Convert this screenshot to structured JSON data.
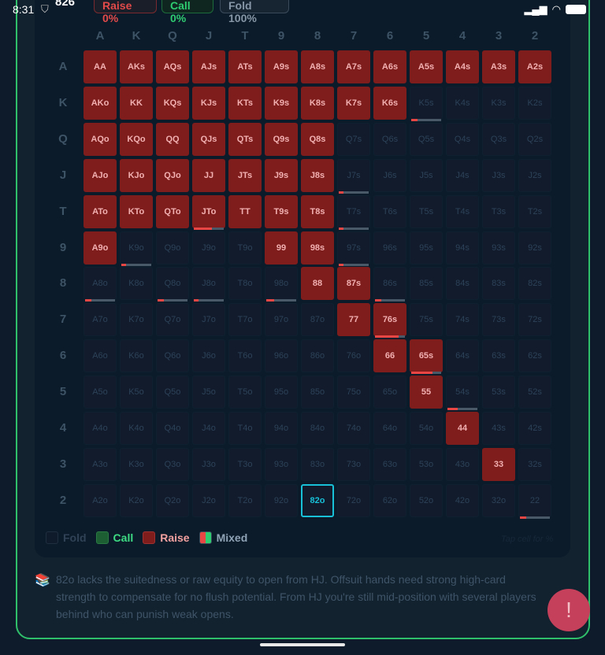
{
  "status_bar": {
    "time": "8:31"
  },
  "header": {
    "score": "826",
    "raise_pill": "Raise 0%",
    "call_pill": "Call 0%",
    "fold_pill": "Fold 100%"
  },
  "grid": {
    "columns": [
      "A",
      "K",
      "Q",
      "J",
      "T",
      "9",
      "8",
      "7",
      "6",
      "5",
      "4",
      "3",
      "2"
    ],
    "hands": [
      [
        "AA",
        "AKs",
        "AQs",
        "AJs",
        "ATs",
        "A9s",
        "A8s",
        "A7s",
        "A6s",
        "A5s",
        "A4s",
        "A3s",
        "A2s"
      ],
      [
        "AKo",
        "KK",
        "KQs",
        "KJs",
        "KTs",
        "K9s",
        "K8s",
        "K7s",
        "K6s",
        "K5s",
        "K4s",
        "K3s",
        "K2s"
      ],
      [
        "AQo",
        "KQo",
        "QQ",
        "QJs",
        "QTs",
        "Q9s",
        "Q8s",
        "Q7s",
        "Q6s",
        "Q5s",
        "Q4s",
        "Q3s",
        "Q2s"
      ],
      [
        "AJo",
        "KJo",
        "QJo",
        "JJ",
        "JTs",
        "J9s",
        "J8s",
        "J7s",
        "J6s",
        "J5s",
        "J4s",
        "J3s",
        "J2s"
      ],
      [
        "ATo",
        "KTo",
        "QTo",
        "JTo",
        "TT",
        "T9s",
        "T8s",
        "T7s",
        "T6s",
        "T5s",
        "T4s",
        "T3s",
        "T2s"
      ],
      [
        "A9o",
        "K9o",
        "Q9o",
        "J9o",
        "T9o",
        "99",
        "98s",
        "97s",
        "96s",
        "95s",
        "94s",
        "93s",
        "92s"
      ],
      [
        "A8o",
        "K8o",
        "Q8o",
        "J8o",
        "T8o",
        "98o",
        "88",
        "87s",
        "86s",
        "85s",
        "84s",
        "83s",
        "82s"
      ],
      [
        "A7o",
        "K7o",
        "Q7o",
        "J7o",
        "T7o",
        "97o",
        "87o",
        "77",
        "76s",
        "75s",
        "74s",
        "73s",
        "72s"
      ],
      [
        "A6o",
        "K6o",
        "Q6o",
        "J6o",
        "T6o",
        "96o",
        "86o",
        "76o",
        "66",
        "65s",
        "64s",
        "63s",
        "62s"
      ],
      [
        "A5o",
        "K5o",
        "Q5o",
        "J5o",
        "T5o",
        "95o",
        "85o",
        "75o",
        "65o",
        "55",
        "54s",
        "53s",
        "52s"
      ],
      [
        "A4o",
        "K4o",
        "Q4o",
        "J4o",
        "T4o",
        "94o",
        "84o",
        "74o",
        "64o",
        "54o",
        "44",
        "43s",
        "42s"
      ],
      [
        "A3o",
        "K3o",
        "Q3o",
        "J3o",
        "T3o",
        "93o",
        "83o",
        "73o",
        "63o",
        "53o",
        "43o",
        "33",
        "32s"
      ],
      [
        "A2o",
        "K2o",
        "Q2o",
        "J2o",
        "T2o",
        "92o",
        "82o",
        "72o",
        "62o",
        "52o",
        "42o",
        "32o",
        "22"
      ]
    ],
    "raise_hands": [
      "AA",
      "AKs",
      "AQs",
      "AJs",
      "ATs",
      "A9s",
      "A8s",
      "A7s",
      "A6s",
      "A5s",
      "A4s",
      "A3s",
      "A2s",
      "AKo",
      "KK",
      "KQs",
      "KJs",
      "KTs",
      "K9s",
      "K8s",
      "K7s",
      "K6s",
      "AQo",
      "KQo",
      "QQ",
      "QJs",
      "QTs",
      "Q9s",
      "Q8s",
      "AJo",
      "KJo",
      "QJo",
      "JJ",
      "JTs",
      "J9s",
      "J8s",
      "ATo",
      "KTo",
      "QTo",
      "JTo",
      "TT",
      "T9s",
      "T8s",
      "A9o",
      "99",
      "98s",
      "88",
      "87s",
      "77",
      "76s",
      "66",
      "65s",
      "55",
      "44",
      "33"
    ],
    "raise_frequency_pct": {
      "K5s": 20,
      "J7s": 15,
      "T7s": 15,
      "97s": 15,
      "JTo": 60,
      "K9o": 15,
      "A8o": 20,
      "Q8o": 20,
      "J8o": 15,
      "98o": 25,
      "86s": 20,
      "76s": 80,
      "65s": 70,
      "54s": 35,
      "22": 20
    },
    "selected_hand": "82o"
  },
  "legend": {
    "fold": "Fold",
    "call": "Call",
    "raise": "Raise",
    "mixed": "Mixed",
    "hint": "Tap cell for %"
  },
  "explanation": "82o lacks the suitedness or raw equity to open from HJ. Offsuit hands need strong high-card strength to compensate for no flush potential. From HJ you're still mid-position with several players behind who can punish weak opens.",
  "fab_label": "!",
  "colors": {
    "raise": "#7f1d1d",
    "call": "#1e5e33",
    "fold": "#111b2b",
    "selected": "#18c0d8",
    "frame": "#2fbf6a"
  }
}
